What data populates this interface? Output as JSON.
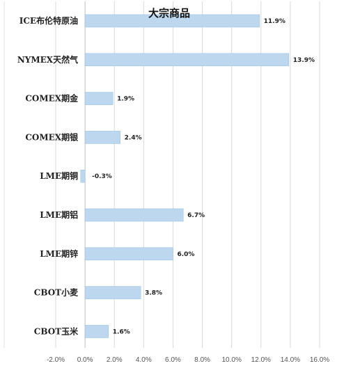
{
  "chart_data": {
    "type": "bar",
    "orientation": "horizontal",
    "title": "大宗商品",
    "xlabel": "",
    "ylabel": "",
    "categories": [
      "ICE布伦特原油",
      "NYMEX天然气",
      "COMEX期金",
      "COMEX期银",
      "LME期铜",
      "LME期铝",
      "LME期锌",
      "CBOT小麦",
      "CBOT玉米"
    ],
    "values": [
      11.9,
      13.9,
      1.9,
      2.4,
      -0.3,
      6.7,
      6.0,
      3.8,
      1.6
    ],
    "value_labels": [
      "11.9%",
      "13.9%",
      "1.9%",
      "2.4%",
      "-0.3%",
      "6.7%",
      "6.0%",
      "3.8%",
      "1.6%"
    ],
    "xlim": [
      -2.0,
      16.0
    ],
    "x_ticks": [
      -2.0,
      0.0,
      2.0,
      4.0,
      6.0,
      8.0,
      10.0,
      12.0,
      14.0,
      16.0
    ],
    "x_tick_labels": [
      "-2.0%",
      "0.0%",
      "2.0%",
      "4.0%",
      "6.0%",
      "8.0%",
      "10.0%",
      "12.0%",
      "14.0%",
      "16.0%"
    ],
    "grid": true,
    "legend": "none",
    "colors": {
      "bar": "#bdd7ee",
      "bar_edge": "#9dc3e6",
      "grid": "#d9d9d9",
      "axis": "#bfbfbf"
    }
  }
}
